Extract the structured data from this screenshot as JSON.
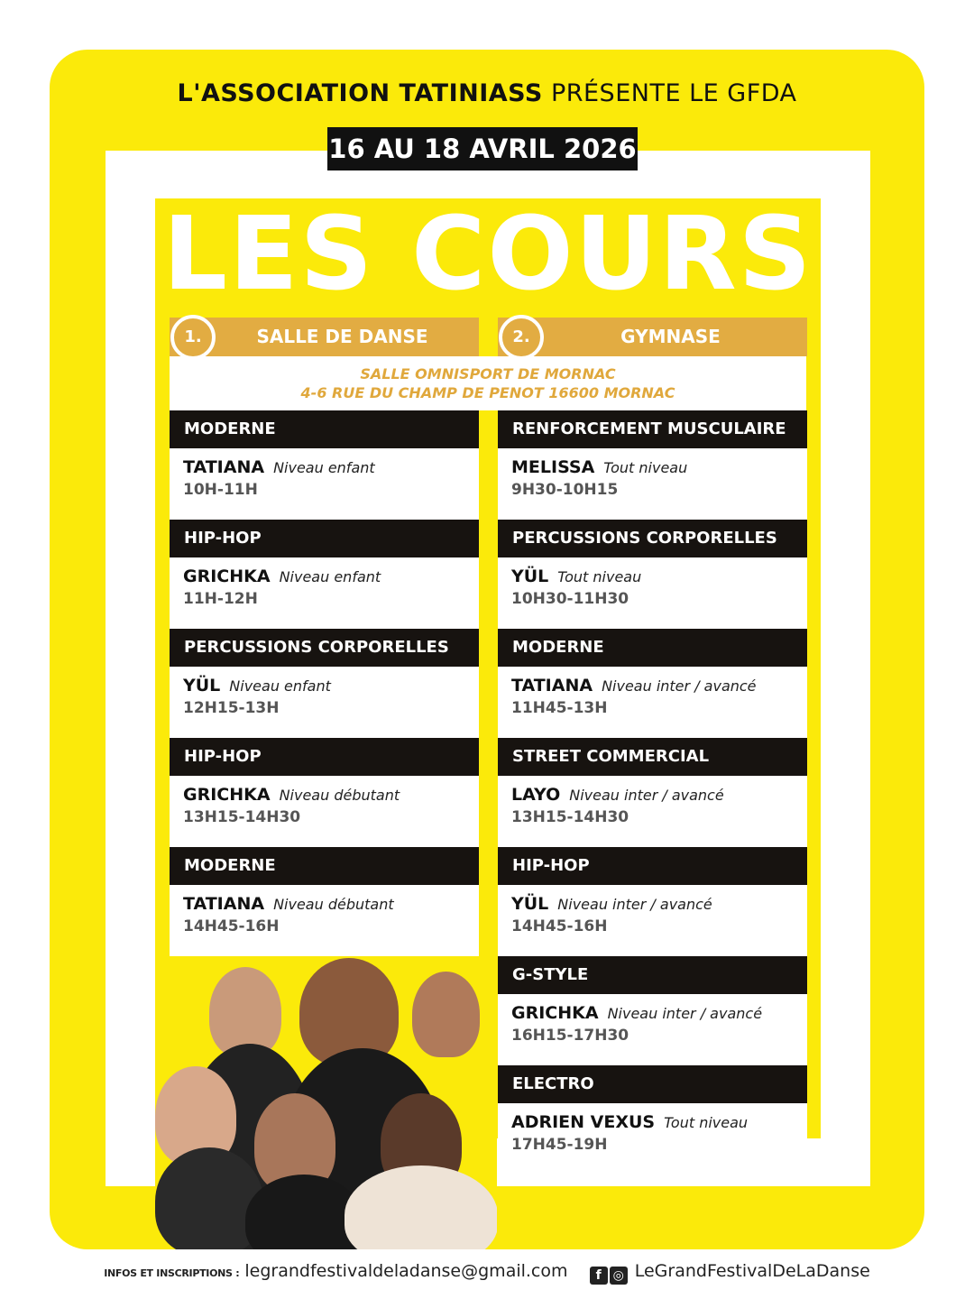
{
  "header": {
    "org": "L'ASSOCIATION TATINIASS",
    "presents": "PRÉSENTE LE GFDA",
    "dates": "16 AU 18 AVRIL 2026",
    "title": "LES COURS"
  },
  "rooms": [
    {
      "number": "1.",
      "name": "SALLE DE DANSE"
    },
    {
      "number": "2.",
      "name": "GYMNASE"
    }
  ],
  "address": {
    "line1": "SALLE OMNISPORT DE MORNAC",
    "line2": "4-6 RUE DU CHAMP DE PENOT 16600 MORNAC"
  },
  "left_classes": [
    {
      "style": "MODERNE",
      "teacher": "TATIANA",
      "level": "Niveau enfant",
      "time": "10H-11H"
    },
    {
      "style": "HIP-HOP",
      "teacher": "GRICHKA",
      "level": "Niveau enfant",
      "time": "11H-12H"
    },
    {
      "style": "PERCUSSIONS CORPORELLES",
      "teacher": "YÜL",
      "level": "Niveau enfant",
      "time": "12H15-13H"
    },
    {
      "style": "HIP-HOP",
      "teacher": "GRICHKA",
      "level": "Niveau débutant",
      "time": "13H15-14H30"
    },
    {
      "style": "MODERNE",
      "teacher": "TATIANA",
      "level": "Niveau débutant",
      "time": "14H45-16H"
    }
  ],
  "right_classes": [
    {
      "style": "RENFORCEMENT MUSCULAIRE",
      "teacher": "MELISSA",
      "level": "Tout niveau",
      "time": "9H30-10H15"
    },
    {
      "style": "PERCUSSIONS CORPORELLES",
      "teacher": "YÜL",
      "level": "Tout niveau",
      "time": "10H30-11H30"
    },
    {
      "style": "MODERNE",
      "teacher": "TATIANA",
      "level": "Niveau inter / avancé",
      "time": "11H45-13H"
    },
    {
      "style": "STREET COMMERCIAL",
      "teacher": "LAYO",
      "level": "Niveau inter / avancé",
      "time": "13H15-14H30"
    },
    {
      "style": "HIP-HOP",
      "teacher": "YÜL",
      "level": "Niveau inter / avancé",
      "time": "14H45-16H"
    },
    {
      "style": "G-STYLE",
      "teacher": "GRICHKA",
      "level": "Niveau inter / avancé",
      "time": "16H15-17H30"
    },
    {
      "style": "ELECTRO",
      "teacher": "ADRIEN VEXUS",
      "level": "Tout niveau",
      "time": "17H45-19H"
    }
  ],
  "footer": {
    "label": "INFOS ET INSCRIPTIONS :",
    "email": "legrandfestivaldeladanse@gmail.com",
    "social": "LeGrandFestivalDeLaDanse"
  },
  "colors": {
    "yellow": "#fbea0a",
    "gold": "#e2ac42",
    "black": "#171310"
  }
}
